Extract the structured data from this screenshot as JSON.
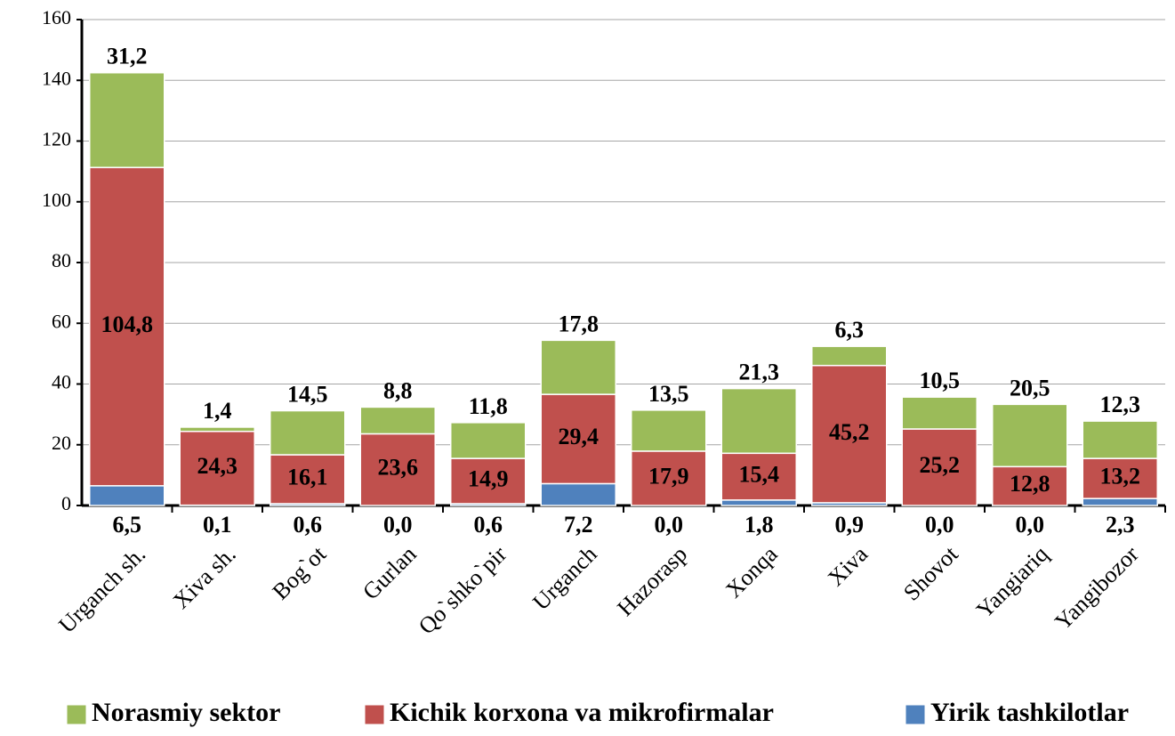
{
  "chart_data": {
    "type": "bar",
    "stacked": true,
    "categories": [
      "Urganch sh.",
      "Xiva sh.",
      "Bog`ot",
      "Gurlan",
      "Qo`shko`pir",
      "Urganch",
      "Hazorasp",
      "Xonqa",
      "Xiva",
      "Shovot",
      "Yangiariq",
      "Yangibozor"
    ],
    "series": [
      {
        "name": "Yirik tashkilotlar",
        "color": "#4f81bd",
        "values": [
          6.5,
          0.1,
          0.6,
          0.0,
          0.6,
          7.2,
          0.0,
          1.8,
          0.9,
          0.0,
          0.0,
          2.3
        ],
        "value_labels": [
          "6,5",
          "0,1",
          "0,6",
          "0,0",
          "0,6",
          "7,2",
          "0,0",
          "1,8",
          "0,9",
          "0,0",
          "0,0",
          "2,3"
        ]
      },
      {
        "name": "Kichik korxona va mikrofirmalar",
        "color": "#c0504d",
        "values": [
          104.8,
          24.3,
          16.1,
          23.6,
          14.9,
          29.4,
          17.9,
          15.4,
          45.2,
          25.2,
          12.8,
          13.2
        ],
        "value_labels": [
          "104,8",
          "24,3",
          "16,1",
          "23,6",
          "14,9",
          "29,4",
          "17,9",
          "15,4",
          "45,2",
          "25,2",
          "12,8",
          "13,2"
        ]
      },
      {
        "name": "Norasmiy sektor",
        "color": "#9bbb59",
        "values": [
          31.2,
          1.4,
          14.5,
          8.8,
          11.8,
          17.8,
          13.5,
          21.3,
          6.3,
          10.5,
          20.5,
          12.3
        ],
        "value_labels": [
          "31,2",
          "1,4",
          "14,5",
          "8,8",
          "11,8",
          "17,8",
          "13,5",
          "21,3",
          "6,3",
          "10,5",
          "20,5",
          "12,3"
        ]
      }
    ],
    "ylim": [
      0,
      160
    ],
    "yticks": [
      0,
      20,
      40,
      60,
      80,
      100,
      120,
      140,
      160
    ],
    "grid": true,
    "legend": "bottom"
  }
}
